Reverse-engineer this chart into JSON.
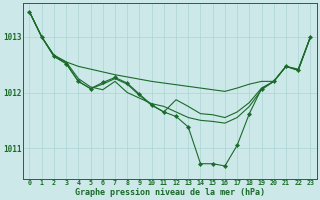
{
  "background_color": "#cce8e8",
  "grid_color": "#aad4d4",
  "line_color": "#1a6b2a",
  "xlabel": "Graphe pression niveau de la mer (hPa)",
  "xlim": [
    -0.5,
    23.5
  ],
  "ylim": [
    1010.45,
    1013.6
  ],
  "yticks": [
    1011,
    1012,
    1013
  ],
  "xticks": [
    0,
    1,
    2,
    3,
    4,
    5,
    6,
    7,
    8,
    9,
    10,
    11,
    12,
    13,
    14,
    15,
    16,
    17,
    18,
    19,
    20,
    21,
    22,
    23
  ],
  "s1": [
    1013.45,
    1013.0,
    1012.67,
    1012.55,
    1012.47,
    1012.42,
    1012.37,
    1012.32,
    1012.28,
    1012.24,
    1012.2,
    1012.17,
    1012.14,
    1012.11,
    1012.08,
    1012.05,
    1012.02,
    1012.08,
    1012.15,
    1012.2,
    1012.2,
    1012.47,
    1012.42,
    1013.0
  ],
  "s2": [
    1013.45,
    1013.0,
    1012.67,
    1012.55,
    1012.25,
    1012.1,
    1012.05,
    1012.2,
    1012.0,
    1011.9,
    1011.8,
    1011.75,
    1011.65,
    1011.55,
    1011.5,
    1011.48,
    1011.45,
    1011.55,
    1011.75,
    1012.05,
    1012.2,
    1012.47,
    1012.4,
    1013.0
  ],
  "s3": [
    1013.45,
    1013.0,
    1012.65,
    1012.52,
    1012.2,
    1012.07,
    1012.15,
    1012.25,
    1012.15,
    1011.95,
    1011.77,
    1011.65,
    1011.87,
    1011.75,
    1011.62,
    1011.6,
    1011.55,
    1011.65,
    1011.82,
    1012.08,
    1012.2,
    1012.47,
    1012.4,
    1013.0
  ],
  "s4_x": [
    0,
    1,
    2,
    3,
    4,
    5,
    6,
    7,
    8,
    9,
    10,
    11,
    12,
    13,
    14,
    15,
    16,
    17,
    18,
    19,
    20,
    21,
    22,
    23
  ],
  "s4": [
    1013.45,
    1013.0,
    1012.65,
    1012.52,
    1012.2,
    1012.07,
    1012.18,
    1012.27,
    1012.17,
    1011.97,
    1011.78,
    1011.65,
    1011.57,
    1011.38,
    1010.72,
    1010.72,
    1010.68,
    1011.05,
    1011.62,
    1012.07,
    1012.2,
    1012.47,
    1012.4,
    1013.0
  ]
}
